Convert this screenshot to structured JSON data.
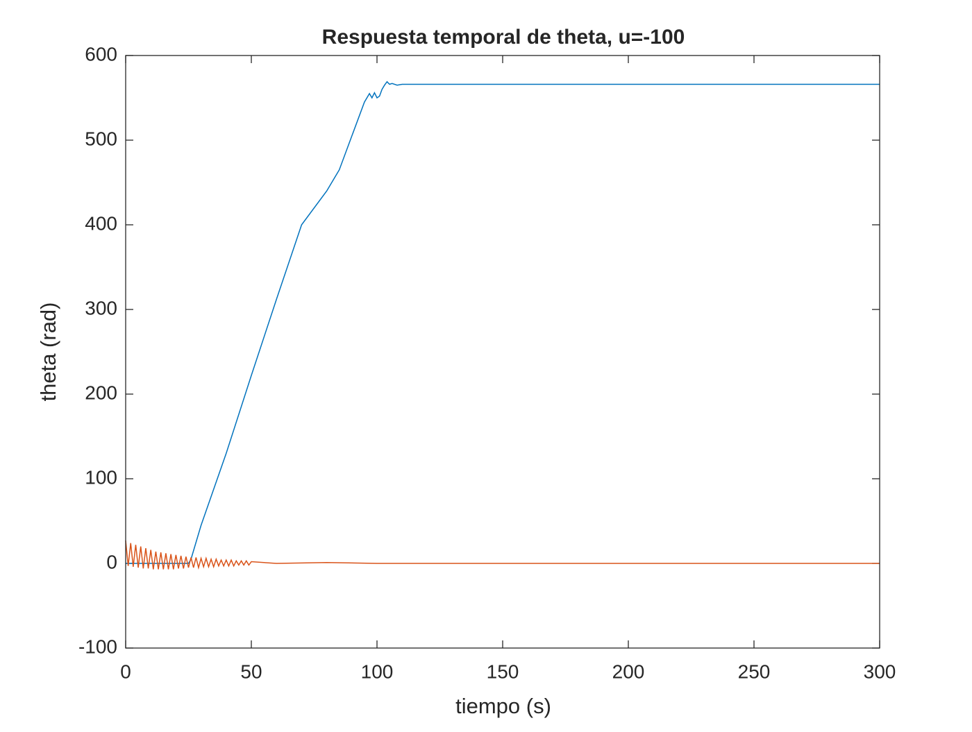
{
  "chart_data": {
    "type": "line",
    "title": "Respuesta temporal de theta, u=-100",
    "xlabel": "tiempo (s)",
    "ylabel": "theta (rad)",
    "xlim": [
      0,
      300
    ],
    "xticks": [
      0,
      50,
      100,
      150,
      200,
      250,
      300
    ],
    "ylim": [
      -100,
      600
    ],
    "yticks": [
      -100,
      0,
      100,
      200,
      300,
      400,
      500,
      600
    ],
    "grid": false,
    "series": [
      {
        "color": "#0072bd",
        "x": [
          0,
          10,
          20,
          25,
          26,
          30,
          40,
          50,
          60,
          70,
          80,
          85,
          90,
          95,
          97,
          98,
          99,
          100,
          101,
          102,
          103,
          104,
          105,
          106,
          108,
          110,
          120,
          150,
          200,
          300
        ],
        "values": [
          0,
          0,
          0,
          0,
          5,
          45,
          130,
          222,
          312,
          400,
          440,
          465,
          505,
          545,
          555,
          550,
          556,
          550,
          552,
          560,
          565,
          569,
          566,
          567,
          565,
          566,
          566,
          566,
          566,
          566
        ]
      },
      {
        "color": "#d95319",
        "x": [
          0,
          1,
          2,
          3,
          4,
          5,
          6,
          7,
          8,
          9,
          10,
          11,
          12,
          13,
          14,
          15,
          16,
          17,
          18,
          19,
          20,
          21,
          22,
          23,
          24,
          25,
          26,
          27,
          28,
          29,
          30,
          31,
          32,
          33,
          34,
          35,
          36,
          37,
          38,
          39,
          40,
          41,
          42,
          43,
          44,
          45,
          46,
          47,
          48,
          49,
          50,
          60,
          80,
          100,
          150,
          200,
          300
        ],
        "values": [
          27,
          -3,
          24,
          -4,
          22,
          -5,
          20,
          -6,
          18,
          -6,
          16,
          -7,
          14,
          -7,
          13,
          -7,
          12,
          -7,
          11,
          -7,
          10,
          -6,
          9,
          -6,
          8,
          -5,
          7,
          -5,
          7,
          -5,
          6,
          -4,
          6,
          -4,
          5,
          -4,
          5,
          -3,
          4,
          -3,
          4,
          -3,
          4,
          -3,
          3,
          -2,
          3,
          -2,
          3,
          -2,
          2,
          0,
          1,
          0,
          0,
          0,
          0
        ]
      }
    ]
  }
}
